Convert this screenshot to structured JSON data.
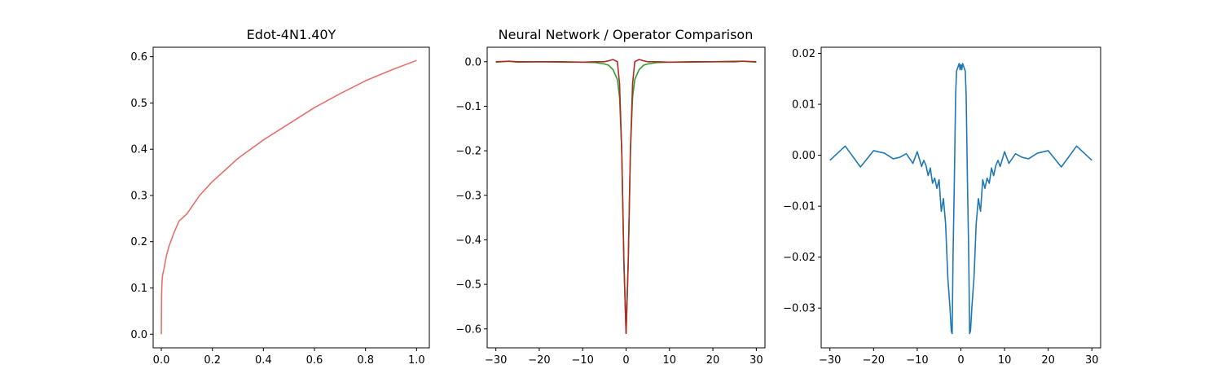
{
  "chart_data": [
    {
      "type": "line",
      "title": "Edot-4N1.40Y",
      "xlim": [
        -0.032,
        1.05
      ],
      "ylim": [
        -0.0295,
        0.6205
      ],
      "xticks": [
        0,
        0.2,
        0.4,
        0.6,
        0.8,
        1.0
      ],
      "yticks": [
        0,
        0.1,
        0.2,
        0.3,
        0.4,
        0.5,
        0.6
      ],
      "xtick_labels": [
        "0.0",
        "0.2",
        "0.4",
        "0.6",
        "0.8",
        "1.0"
      ],
      "ytick_labels": [
        "0.0",
        "0.1",
        "0.2",
        "0.3",
        "0.4",
        "0.5",
        "0.6"
      ],
      "series": [
        {
          "color": "#e8706c",
          "x": [
            0,
            0.001,
            0.003,
            0.005,
            0.01,
            0.02,
            0.03,
            0.05,
            0.07,
            0.1,
            0.15,
            0.2,
            0.25,
            0.3,
            0.4,
            0.5,
            0.6,
            0.7,
            0.8,
            0.9,
            1.0
          ],
          "y": [
            0,
            0.085,
            0.115,
            0.128,
            0.14,
            0.17,
            0.19,
            0.22,
            0.245,
            0.26,
            0.3,
            0.33,
            0.355,
            0.38,
            0.42,
            0.455,
            0.49,
            0.52,
            0.548,
            0.571,
            0.592
          ]
        }
      ]
    },
    {
      "type": "line",
      "title": "Neural Network / Operator Comparison",
      "xlim": [
        -32,
        32
      ],
      "ylim": [
        -0.6425,
        0.0325
      ],
      "xticks": [
        -30,
        -20,
        -10,
        0,
        10,
        20,
        30
      ],
      "yticks": [
        0,
        -0.1,
        -0.2,
        -0.3,
        -0.4,
        -0.5,
        -0.6
      ],
      "xtick_labels": [
        "−30",
        "−20",
        "−10",
        "0",
        "10",
        "20",
        "30"
      ],
      "ytick_labels": [
        "0.0",
        "−0.1",
        "−0.2",
        "−0.3",
        "−0.4",
        "−0.5",
        "−0.6"
      ],
      "series": [
        {
          "color": "#2ca02c",
          "x": [
            -30,
            -27,
            -25,
            -20,
            -15,
            -10,
            -7,
            -5,
            -4,
            -3,
            -2,
            -1.5,
            -1,
            -0.5,
            0,
            0.5,
            1,
            1.5,
            2,
            3,
            4,
            5,
            7,
            10,
            15,
            20,
            25,
            27,
            30
          ],
          "y": [
            -0.001,
            0.001,
            -0.001,
            0,
            -0.001,
            -0.001,
            -0.002,
            -0.005,
            -0.008,
            -0.018,
            -0.04,
            -0.08,
            -0.2,
            -0.45,
            -0.61,
            -0.45,
            -0.2,
            -0.08,
            -0.04,
            -0.018,
            -0.008,
            -0.005,
            -0.002,
            -0.001,
            -0.001,
            0,
            0.001,
            0.001,
            -0.001
          ]
        },
        {
          "color": "#b22a24",
          "x": [
            -30,
            -27,
            -25,
            -20,
            -15,
            -10,
            -7,
            -5,
            -4,
            -3,
            -2,
            -1.5,
            -1,
            -0.5,
            0,
            0.5,
            1,
            1.5,
            2,
            3,
            4,
            5,
            7,
            10,
            15,
            20,
            25,
            27,
            30
          ],
          "y": [
            0,
            0.001,
            0,
            0,
            0,
            -0.001,
            0,
            0,
            0.002,
            0.005,
            0,
            -0.05,
            -0.2,
            -0.45,
            -0.61,
            -0.45,
            -0.2,
            -0.05,
            0,
            0.005,
            0.002,
            0,
            0,
            -0.001,
            0,
            0,
            0,
            0.001,
            0
          ]
        }
      ]
    },
    {
      "type": "line",
      "title": "",
      "xlim": [
        -32,
        32
      ],
      "ylim": [
        -0.0378,
        0.0212
      ],
      "xticks": [
        -30,
        -20,
        -10,
        0,
        10,
        20,
        30
      ],
      "yticks": [
        0.02,
        0.01,
        0,
        -0.01,
        -0.02,
        -0.03
      ],
      "xtick_labels": [
        "−30",
        "−20",
        "−10",
        "0",
        "10",
        "20",
        "30"
      ],
      "ytick_labels": [
        "0.02",
        "0.01",
        "0.00",
        "−0.01",
        "−0.02",
        "−0.03"
      ],
      "series": [
        {
          "color": "#1f77b4",
          "x": [
            -30,
            -26.5,
            -23,
            -20,
            -17.5,
            -15.5,
            -14,
            -12.5,
            -11,
            -10,
            -9,
            -8.5,
            -8,
            -7.5,
            -7,
            -6.5,
            -6,
            -5.5,
            -5,
            -4.5,
            -4,
            -3.5,
            -3,
            -2.5,
            -2.2,
            -2,
            -1.8,
            -1.5,
            -1.2,
            -1,
            -0.8,
            -0.6,
            -0.4,
            -0.2,
            0,
            0.2,
            0.4,
            0.6,
            0.8,
            1,
            1.2,
            1.5,
            1.8,
            2,
            2.2,
            2.5,
            3,
            3.5,
            4,
            4.5,
            5,
            5.5,
            6,
            6.5,
            7,
            7.5,
            8,
            8.5,
            9,
            10,
            11,
            12.5,
            14,
            15.5,
            17.5,
            20,
            23,
            26.5,
            30
          ],
          "y": [
            -0.001,
            0.0018,
            -0.0023,
            0.0009,
            0.0004,
            -0.0007,
            -0.0004,
            0.0003,
            -0.0016,
            0.0007,
            -0.0022,
            -0.001,
            -0.002,
            -0.004,
            -0.0025,
            -0.0055,
            -0.0045,
            -0.0065,
            -0.0048,
            -0.011,
            -0.0085,
            -0.0135,
            -0.024,
            -0.03,
            -0.0345,
            -0.035,
            -0.02,
            -0.005,
            0.012,
            0.0165,
            0.017,
            0.0175,
            0.018,
            0.0168,
            0.0178,
            0.0168,
            0.018,
            0.0175,
            0.017,
            0.0165,
            0.012,
            -0.005,
            -0.02,
            -0.035,
            -0.0345,
            -0.03,
            -0.024,
            -0.0135,
            -0.0085,
            -0.011,
            -0.0048,
            -0.0065,
            -0.0045,
            -0.0055,
            -0.0025,
            -0.004,
            -0.002,
            -0.001,
            -0.0022,
            0.0007,
            -0.0016,
            0.0003,
            -0.0004,
            -0.0007,
            0.0004,
            0.0009,
            -0.0023,
            0.0018,
            -0.001
          ]
        }
      ]
    }
  ]
}
